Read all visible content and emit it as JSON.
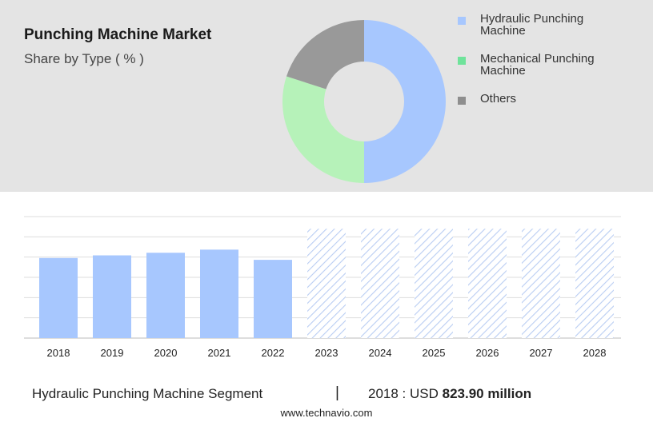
{
  "header": {
    "title": "Punching Machine Market",
    "subtitle": "Share by Type ( % )"
  },
  "donut_legend": [
    {
      "line1": "Hydraulic Punching",
      "line2": "Machine",
      "color": "#a7c7fe"
    },
    {
      "line1": "Mechanical Punching",
      "line2": "Machine",
      "color": "#6fe39b"
    },
    {
      "line1": "Others",
      "line2": "",
      "color": "#8e8e8e"
    }
  ],
  "chart_data": [
    {
      "type": "pie",
      "categories": [
        "Hydraulic Punching Machine",
        "Mechanical Punching Machine",
        "Others"
      ],
      "values": [
        50,
        30,
        20
      ],
      "colors": [
        "#a7c7fe",
        "#b6f2b9",
        "#999999"
      ],
      "donut": true
    },
    {
      "type": "bar",
      "categories": [
        "2018",
        "2019",
        "2020",
        "2021",
        "2022",
        "2023",
        "2024",
        "2025",
        "2026",
        "2027",
        "2028"
      ],
      "values": [
        823.9,
        851,
        878,
        910,
        805,
        null,
        null,
        null,
        null,
        null,
        null
      ],
      "forecast_years": [
        "2023",
        "2024",
        "2025",
        "2026",
        "2027",
        "2028"
      ],
      "ylim": [
        0,
        1250
      ],
      "grid": true,
      "bar_color": "#a7c7fe",
      "forecast_color": "#b9cdf3"
    }
  ],
  "footer": {
    "segment": "Hydraulic Punching Machine Segment",
    "separator": "|",
    "year_label": "2018 : USD",
    "value": "823.90 million",
    "site": "www.technavio.com"
  }
}
